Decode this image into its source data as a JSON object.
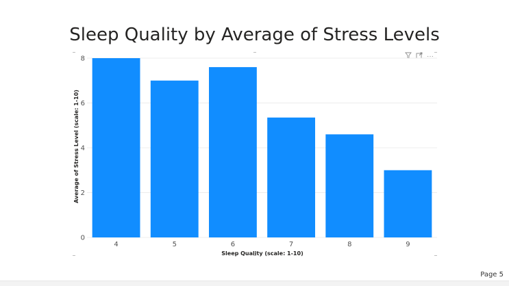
{
  "page": {
    "number_label": "Page 5"
  },
  "toolbar": {
    "filter_icon": "filter-icon",
    "focus_icon": "focus-mode-icon",
    "more_icon": "more-options-icon",
    "more_glyph": "···"
  },
  "chart_data": {
    "type": "bar",
    "title": "Sleep Quality by Average of Stress Levels",
    "xlabel": "Sleep Quality (scale: 1-10)",
    "ylabel": "Average of Stress Level (scale: 1-10)",
    "categories": [
      "4",
      "5",
      "6",
      "7",
      "8",
      "9"
    ],
    "values": [
      8.0,
      7.0,
      7.6,
      5.35,
      4.6,
      3.0
    ],
    "ylim": [
      0,
      8
    ],
    "yticks": [
      0,
      2,
      4,
      6,
      8
    ],
    "grid": true,
    "bar_color": "#118dff"
  }
}
